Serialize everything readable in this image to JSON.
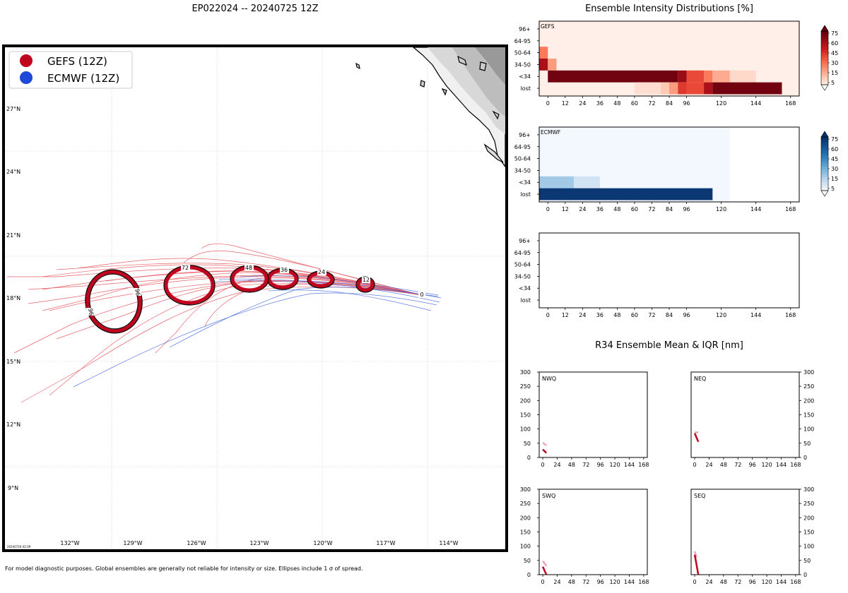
{
  "map": {
    "title": "EP022024 -- 20240725 12Z",
    "legend": [
      {
        "label": "GEFS (12Z)",
        "color": "#c0051f"
      },
      {
        "label": "ECMWF (12Z)",
        "color": "#1f49d8"
      }
    ],
    "lat_labels": [
      "27°N",
      "24°N",
      "21°N",
      "18°N",
      "15°N",
      "12°N",
      "9°N"
    ],
    "lon_labels": [
      "132°W",
      "129°W",
      "126°W",
      "123°W",
      "120°W",
      "117°W",
      "114°W"
    ],
    "ellipse_labels": [
      "0",
      "12",
      "24",
      "36",
      "48",
      "72",
      "96"
    ],
    "timestamp": "20240726 02:09",
    "footnote": "For model diagnostic purposes. Global ensembles are generally not reliable for intensity or size. Ellipses include 1 σ of spread."
  },
  "intensity": {
    "title": "Ensemble Intensity Distributions [%]",
    "panel_labels": [
      "GEFS",
      "ECMWF",
      ""
    ],
    "y_categories": [
      "96+",
      "64-95",
      "50-64",
      "34-50",
      "<34",
      "lost"
    ],
    "x_ticks": [
      "0",
      "12",
      "24",
      "36",
      "48",
      "60",
      "72",
      "84",
      "96",
      "120",
      "144",
      "168"
    ],
    "colorbar_ticks": [
      "75",
      "60",
      "45",
      "30",
      "15",
      "5"
    ]
  },
  "r34": {
    "title": "R34 Ensemble Mean & IQR [nm]",
    "quadrants": [
      "NWQ",
      "NEQ",
      "SWQ",
      "SEQ"
    ],
    "y_ticks": [
      "300",
      "250",
      "200",
      "150",
      "100",
      "50",
      "0"
    ],
    "x_ticks": [
      "0",
      "24",
      "48",
      "72",
      "96",
      "120",
      "144",
      "168"
    ]
  },
  "chart_data": [
    {
      "type": "heatmap",
      "name": "GEFS",
      "x": [
        0,
        6,
        12,
        18,
        24,
        30,
        36,
        42,
        48,
        54,
        60,
        66,
        72,
        78,
        84,
        90,
        96,
        102,
        108,
        114,
        120,
        126,
        132,
        138,
        144,
        150,
        156,
        162,
        168
      ],
      "y_categories": [
        "96+",
        "64-95",
        "50-64",
        "34-50",
        "<34",
        "lost"
      ],
      "cells": [
        {
          "row": "50-64",
          "x0": 0,
          "x1": 6,
          "pct": 40
        },
        {
          "row": "34-50",
          "x0": 0,
          "x1": 6,
          "pct": 80
        },
        {
          "row": "34-50",
          "x0": 6,
          "x1": 12,
          "pct": 30
        },
        {
          "row": "<34",
          "x0": 6,
          "x1": 96,
          "pct": 97
        },
        {
          "row": "<34",
          "x0": 96,
          "x1": 102,
          "pct": 85
        },
        {
          "row": "<34",
          "x0": 102,
          "x1": 114,
          "pct": 55
        },
        {
          "row": "<34",
          "x0": 114,
          "x1": 120,
          "pct": 40
        },
        {
          "row": "<34",
          "x0": 120,
          "x1": 132,
          "pct": 25
        },
        {
          "row": "<34",
          "x0": 132,
          "x1": 150,
          "pct": 10
        },
        {
          "row": "lost",
          "x0": 66,
          "x1": 84,
          "pct": 8
        },
        {
          "row": "lost",
          "x0": 84,
          "x1": 90,
          "pct": 15
        },
        {
          "row": "lost",
          "x0": 90,
          "x1": 96,
          "pct": 30
        },
        {
          "row": "lost",
          "x0": 96,
          "x1": 102,
          "pct": 60
        },
        {
          "row": "lost",
          "x0": 102,
          "x1": 114,
          "pct": 55
        },
        {
          "row": "lost",
          "x0": 114,
          "x1": 120,
          "pct": 80
        },
        {
          "row": "lost",
          "x0": 120,
          "x1": 168,
          "pct": 97
        }
      ],
      "vmax": 75
    },
    {
      "type": "heatmap",
      "name": "ECMWF",
      "y_categories": [
        "96+",
        "64-95",
        "50-64",
        "34-50",
        "<34",
        "lost"
      ],
      "cells": [
        {
          "row": "<34",
          "x0": 0,
          "x1": 24,
          "pct": 30
        },
        {
          "row": "<34",
          "x0": 24,
          "x1": 42,
          "pct": 15
        },
        {
          "row": "lost",
          "x0": 0,
          "x1": 120,
          "pct": 97
        }
      ],
      "valid_x_max": 120,
      "vmax": 75
    },
    {
      "type": "line",
      "name": "R34",
      "ylim": [
        0,
        300
      ],
      "xlim": [
        0,
        168
      ],
      "series": [
        {
          "quadrant": "NWQ",
          "mean": [
            [
              0,
              28
            ],
            [
              6,
              16
            ]
          ],
          "iqr": [
            [
              0,
              52
            ],
            [
              6,
              42
            ]
          ]
        },
        {
          "quadrant": "NEQ",
          "mean": [
            [
              0,
              85
            ],
            [
              6,
              55
            ]
          ],
          "iqr": [
            [
              0,
              88
            ],
            [
              6,
              88
            ]
          ]
        },
        {
          "quadrant": "SWQ",
          "mean": [
            [
              0,
              28
            ],
            [
              6,
              0
            ]
          ],
          "iqr": [
            [
              0,
              48
            ],
            [
              6,
              30
            ]
          ]
        },
        {
          "quadrant": "SEQ",
          "mean": [
            [
              0,
              70
            ],
            [
              6,
              0
            ]
          ],
          "iqr": [
            [
              0,
              82
            ],
            [
              3,
              60
            ]
          ]
        }
      ]
    }
  ]
}
